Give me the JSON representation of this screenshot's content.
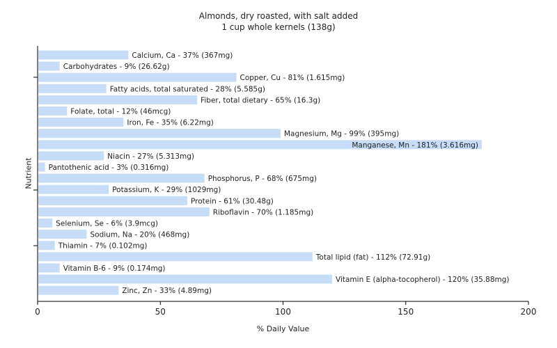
{
  "chart_data": {
    "type": "bar",
    "orientation": "horizontal",
    "title": "Almonds, dry roasted, with salt added",
    "subtitle": "1 cup whole kernels (138g)",
    "xlabel": "% Daily Value",
    "ylabel": "Nutrient",
    "xlim": [
      0,
      200
    ],
    "xticks": [
      0,
      50,
      100,
      150,
      200
    ],
    "grid": false,
    "bar_color": "#c6dcf7",
    "categories": [
      "Calcium, Ca",
      "Carbohydrates",
      "Copper, Cu",
      "Fatty acids, total saturated",
      "Fiber, total dietary",
      "Folate, total",
      "Iron, Fe",
      "Magnesium, Mg",
      "Manganese, Mn",
      "Niacin",
      "Pantothenic acid",
      "Phosphorus, P",
      "Potassium, K",
      "Protein",
      "Riboflavin",
      "Selenium, Se",
      "Sodium, Na",
      "Thiamin",
      "Total lipid (fat)",
      "Vitamin B-6",
      "Vitamin E (alpha-tocopherol)",
      "Zinc, Zn"
    ],
    "values": [
      37,
      9,
      81,
      28,
      65,
      12,
      35,
      99,
      181,
      27,
      3,
      68,
      29,
      61,
      70,
      6,
      20,
      7,
      112,
      9,
      120,
      33
    ],
    "labels": [
      "Calcium, Ca - 37% (367mg)",
      "Carbohydrates - 9% (26.62g)",
      "Copper, Cu - 81% (1.615mg)",
      "Fatty acids, total saturated - 28% (5.585g)",
      "Fiber, total dietary - 65% (16.3g)",
      "Folate, total - 12% (46mcg)",
      "Iron, Fe - 35% (6.22mg)",
      "Magnesium, Mg - 99% (395mg)",
      "Manganese, Mn - 181% (3.616mg)",
      "Niacin - 27% (5.313mg)",
      "Pantothenic acid - 3% (0.316mg)",
      "Phosphorus, P - 68% (675mg)",
      "Potassium, K - 29% (1029mg)",
      "Protein - 61% (30.48g)",
      "Riboflavin - 70% (1.185mg)",
      "Selenium, Se - 6% (3.9mcg)",
      "Sodium, Na - 20% (468mg)",
      "Thiamin - 7% (0.102mg)",
      "Total lipid (fat) - 112% (72.91g)",
      "Vitamin B-6 - 9% (0.174mg)",
      "Vitamin E (alpha-tocopherol) - 120% (35.88mg)",
      "Zinc, Zn - 33% (4.89mg)"
    ]
  }
}
